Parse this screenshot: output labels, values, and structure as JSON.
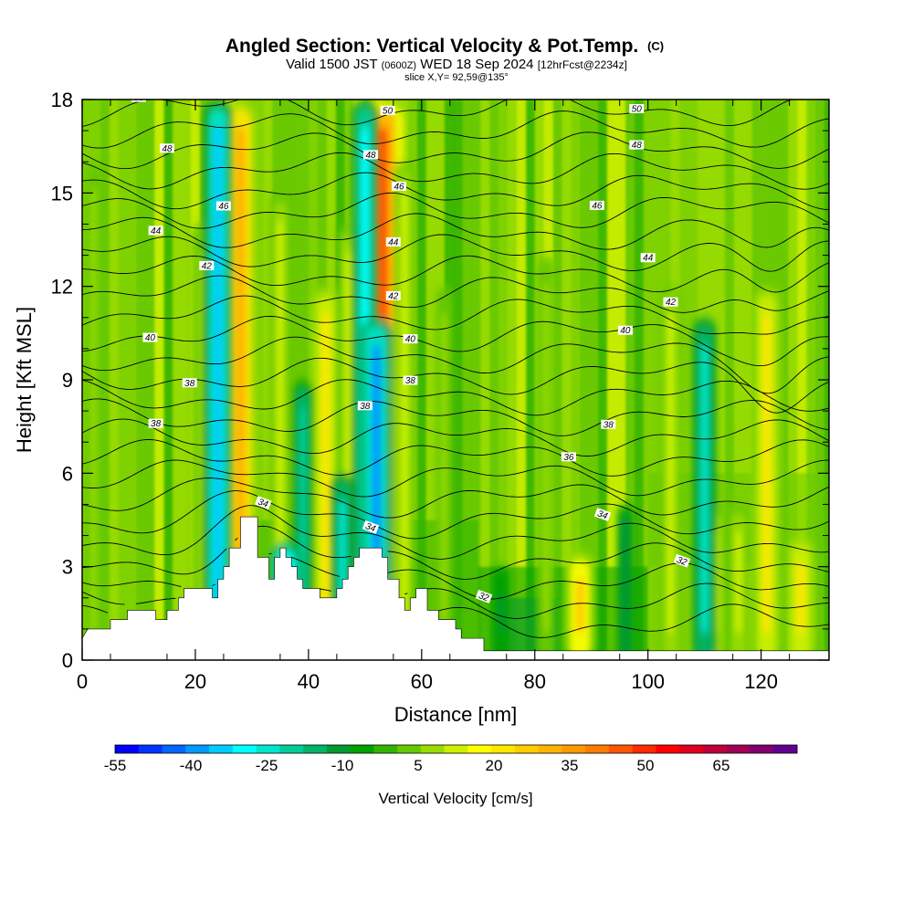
{
  "title": {
    "main": "Angled Section: Vertical Velocity & Pot.Temp.",
    "main_suffix": "(C)",
    "valid_prefix": "Valid 1500 JST",
    "valid_utc": "(0600Z)",
    "valid_date": "WED 18 Sep 2024",
    "fcst": "[12hrFcst@2234z]",
    "slice": "slice X,Y= 92,59@135°"
  },
  "chart_data": {
    "type": "heatmap",
    "xlabel": "Distance [nm]",
    "ylabel": "Height [Kft MSL]",
    "xlim": [
      0,
      132
    ],
    "ylim": [
      0,
      18
    ],
    "x_ticks": [
      "0",
      "20",
      "40",
      "60",
      "80",
      "100",
      "120"
    ],
    "x_tick_values": [
      0,
      20,
      40,
      60,
      80,
      100,
      120
    ],
    "y_ticks": [
      "0",
      "3",
      "6",
      "9",
      "12",
      "15",
      "18"
    ],
    "y_tick_values": [
      0,
      3,
      6,
      9,
      12,
      15,
      18
    ],
    "shaded_field": "Vertical Velocity [cm/s]",
    "colorbar": {
      "label": "Vertical Velocity [cm/s]",
      "tick_labels": [
        "-55",
        "-40",
        "-25",
        "-10",
        "5",
        "20",
        "35",
        "50",
        "65"
      ],
      "colors": [
        "#0000ff",
        "#0033ff",
        "#0066ff",
        "#0099ff",
        "#00ccff",
        "#00ffff",
        "#00e6cc",
        "#00cc99",
        "#00b366",
        "#009933",
        "#00a000",
        "#33b400",
        "#66c800",
        "#99dc00",
        "#ccf000",
        "#ffff00",
        "#ffe600",
        "#ffcc00",
        "#ffb300",
        "#ff9900",
        "#ff7a00",
        "#ff5500",
        "#ff2a00",
        "#ff0000",
        "#e0001c",
        "#c00038",
        "#a00054",
        "#800070",
        "#600090"
      ]
    },
    "updraft_columns": [
      {
        "x": 21,
        "y_top": 14,
        "w": 10
      },
      {
        "x": 28,
        "y_top": 18,
        "w": 35
      },
      {
        "x": 35,
        "y_top": 15,
        "w": 15
      },
      {
        "x": 43,
        "y_top": 12,
        "w": 25
      },
      {
        "x": 47,
        "y_top": 14,
        "w": 15
      },
      {
        "x": 53,
        "y_top": 18,
        "w": 50
      },
      {
        "x": 57,
        "y_top": 16,
        "w": 15
      },
      {
        "x": 64,
        "y_top": 12,
        "w": 8
      },
      {
        "x": 82,
        "y_top": 13,
        "w": 10
      },
      {
        "x": 88,
        "y_top": 3.5,
        "w": 30
      },
      {
        "x": 104,
        "y_top": 12,
        "w": 15
      },
      {
        "x": 112,
        "y_top": 5,
        "w": 15
      },
      {
        "x": 116,
        "y_top": 5,
        "w": 15
      },
      {
        "x": 121,
        "y_top": 12,
        "w": 25
      },
      {
        "x": 127,
        "y_top": 4,
        "w": 25
      },
      {
        "x": 2,
        "y_top": 16,
        "w": 8
      }
    ],
    "downdraft_columns": [
      {
        "x": 24,
        "y_top": 18,
        "w": -35
      },
      {
        "x": 39,
        "y_top": 9,
        "w": -20
      },
      {
        "x": 36,
        "y_top": 3.8,
        "w": -45
      },
      {
        "x": 46,
        "y_top": 6,
        "w": -25
      },
      {
        "x": 50,
        "y_top": 18,
        "w": -30
      },
      {
        "x": 52,
        "y_top": 11,
        "w": -40
      },
      {
        "x": 110,
        "y_top": 11,
        "w": -25
      },
      {
        "x": 96,
        "y_top": 5,
        "w": -12
      },
      {
        "x": 74,
        "y_top": 3,
        "w": -10
      }
    ],
    "terrain_kft": [
      [
        0,
        0.7
      ],
      [
        1,
        1
      ],
      [
        5,
        1
      ],
      [
        5,
        1.3
      ],
      [
        8,
        1.3
      ],
      [
        8,
        1.6
      ],
      [
        13,
        1.6
      ],
      [
        13,
        1.3
      ],
      [
        15,
        1.3
      ],
      [
        15,
        1.6
      ],
      [
        17,
        1.6
      ],
      [
        17,
        2
      ],
      [
        18,
        2
      ],
      [
        18,
        2.3
      ],
      [
        23,
        2.3
      ],
      [
        23,
        2
      ],
      [
        24,
        2
      ],
      [
        24,
        2.6
      ],
      [
        25,
        2.6
      ],
      [
        25,
        3
      ],
      [
        26,
        3
      ],
      [
        26,
        3.6
      ],
      [
        28,
        3.6
      ],
      [
        28,
        4.6
      ],
      [
        31,
        4.6
      ],
      [
        31,
        3.3
      ],
      [
        33,
        3.3
      ],
      [
        33,
        2.6
      ],
      [
        34,
        2.6
      ],
      [
        34,
        3.3
      ],
      [
        35,
        3.3
      ],
      [
        35,
        3.6
      ],
      [
        36,
        3.6
      ],
      [
        36,
        3.3
      ],
      [
        37,
        3.3
      ],
      [
        37,
        3
      ],
      [
        38,
        3
      ],
      [
        38,
        2.6
      ],
      [
        39,
        2.6
      ],
      [
        39,
        2.3
      ],
      [
        40,
        2.3
      ],
      [
        40,
        2.3
      ],
      [
        42,
        2.3
      ],
      [
        42,
        2
      ],
      [
        45,
        2
      ],
      [
        45,
        2.3
      ],
      [
        46,
        2.3
      ],
      [
        46,
        2.6
      ],
      [
        47,
        2.6
      ],
      [
        47,
        3
      ],
      [
        48,
        3
      ],
      [
        48,
        3.3
      ],
      [
        49,
        3.3
      ],
      [
        49,
        3.6
      ],
      [
        53,
        3.6
      ],
      [
        53,
        3.3
      ],
      [
        54,
        3.3
      ],
      [
        54,
        2.6
      ],
      [
        56,
        2.6
      ],
      [
        56,
        2
      ],
      [
        57,
        2
      ],
      [
        57,
        1.6
      ],
      [
        58,
        1.6
      ],
      [
        58,
        2
      ],
      [
        59,
        2
      ],
      [
        59,
        2.3
      ],
      [
        61,
        2.3
      ],
      [
        61,
        1.6
      ],
      [
        63,
        1.6
      ],
      [
        63,
        1.3
      ],
      [
        66,
        1.3
      ],
      [
        66,
        1
      ],
      [
        67,
        1
      ],
      [
        67,
        0.7
      ],
      [
        71,
        0.7
      ],
      [
        71,
        0.3
      ],
      [
        132,
        0.3
      ]
    ],
    "theta_contours": [
      {
        "label": "32",
        "label_x": [
          71,
          106
        ]
      },
      {
        "label": "34",
        "label_x": [
          32,
          51,
          92
        ]
      },
      {
        "label": "36",
        "label_x": [
          86
        ]
      },
      {
        "label": "38",
        "label_x": [
          13,
          50,
          93
        ]
      },
      {
        "label": "38",
        "label_x": [
          19,
          58
        ]
      },
      {
        "label": "40",
        "label_x": [
          12,
          58,
          96
        ]
      },
      {
        "label": "42",
        "label_x": [
          22,
          55,
          104
        ]
      },
      {
        "label": "44",
        "label_x": [
          13,
          55,
          100
        ]
      },
      {
        "label": "46",
        "label_x": [
          25,
          56,
          91
        ]
      },
      {
        "label": "48",
        "label_x": [
          15,
          51,
          98
        ]
      },
      {
        "label": "50",
        "label_x": [
          10,
          54,
          98
        ]
      }
    ]
  }
}
